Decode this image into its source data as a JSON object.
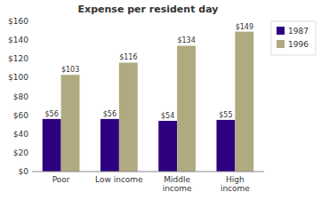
{
  "chart_data": {
    "type": "bar",
    "title": "Expense per resident day",
    "categories": [
      "Poor",
      "Low income",
      "Middle\nincome",
      "High\nincome"
    ],
    "series": [
      {
        "name": "1987",
        "color": "#2d0080",
        "values": [
          56,
          56,
          54,
          55
        ],
        "value_labels": [
          "$56",
          "$56",
          "$54",
          "$55"
        ]
      },
      {
        "name": "1996",
        "color": "#b0aa80",
        "values": [
          103,
          116,
          134,
          149
        ],
        "value_labels": [
          "$103",
          "$116",
          "$134",
          "$149"
        ]
      }
    ],
    "ylim": [
      0,
      160
    ],
    "yticks": [
      {
        "value": 0,
        "label": "$0"
      },
      {
        "value": 20,
        "label": "$20"
      },
      {
        "value": 40,
        "label": "$40"
      },
      {
        "value": 60,
        "label": "$60"
      },
      {
        "value": 80,
        "label": "$80"
      },
      {
        "value": 100,
        "label": "$100"
      },
      {
        "value": 120,
        "label": "$120"
      },
      {
        "value": 140,
        "label": "$140"
      },
      {
        "value": 160,
        "label": "$160"
      }
    ],
    "grid": false,
    "data_labels": true,
    "legend": "right"
  }
}
